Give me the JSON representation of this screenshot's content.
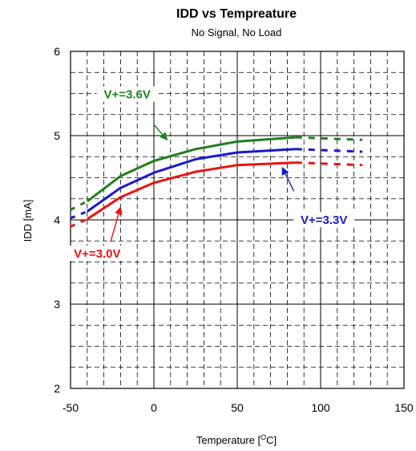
{
  "chart_data": {
    "type": "line",
    "title": "IDD vs Tempreature",
    "subtitle": "No Signal, No Load",
    "xlabel": "Temperature [",
    "xlabel_sup": "O",
    "xlabel_unit": "C]",
    "ylabel": "IDD [mA]",
    "xlim": [
      -50,
      150
    ],
    "ylim": [
      2,
      6
    ],
    "x_ticks": [
      "-50",
      "0",
      "50",
      "100",
      "150"
    ],
    "y_ticks": [
      "2",
      "3",
      "4",
      "5",
      "6"
    ],
    "grid": "major solid, minor dashed",
    "series": [
      {
        "name": "V+=3.6V",
        "color": "#1f7f1f",
        "solid": [
          [
            -40,
            4.22
          ],
          [
            -20,
            4.52
          ],
          [
            0,
            4.7
          ],
          [
            25,
            4.84
          ],
          [
            50,
            4.93
          ],
          [
            85,
            4.98
          ]
        ],
        "dashed_low": [
          [
            -50,
            4.12
          ],
          [
            -40,
            4.22
          ]
        ],
        "dashed_high": [
          [
            85,
            4.98
          ],
          [
            125,
            4.95
          ]
        ]
      },
      {
        "name": "V+=3.3V",
        "color": "#1a1acc",
        "solid": [
          [
            -40,
            4.1
          ],
          [
            -20,
            4.38
          ],
          [
            0,
            4.56
          ],
          [
            25,
            4.72
          ],
          [
            50,
            4.8
          ],
          [
            85,
            4.84
          ]
        ],
        "dashed_low": [
          [
            -50,
            4.02
          ],
          [
            -40,
            4.1
          ]
        ],
        "dashed_high": [
          [
            85,
            4.84
          ],
          [
            125,
            4.81
          ]
        ]
      },
      {
        "name": "V+=3.0V",
        "color": "#ee1111",
        "solid": [
          [
            -40,
            4.01
          ],
          [
            -20,
            4.27
          ],
          [
            0,
            4.44
          ],
          [
            25,
            4.57
          ],
          [
            50,
            4.65
          ],
          [
            85,
            4.68
          ]
        ],
        "dashed_low": [
          [
            -50,
            3.92
          ],
          [
            -40,
            4.01
          ]
        ],
        "dashed_high": [
          [
            85,
            4.68
          ],
          [
            125,
            4.65
          ]
        ]
      }
    ],
    "annotations": [
      {
        "text": "V+=3.6V",
        "color": "#1f7f1f",
        "label_at": [
          -16,
          5.46
        ],
        "arrow_from": [
          0,
          5.13
        ],
        "arrow_to": [
          8,
          4.95
        ]
      },
      {
        "text": "V+=3.3V",
        "color": "#1a1acc",
        "label_at": [
          102,
          3.97
        ],
        "arrow_from": [
          84,
          4.34
        ],
        "arrow_to": [
          77,
          4.62
        ]
      },
      {
        "text": "V+=3.0V",
        "color": "#ee1111",
        "label_at": [
          -34,
          3.57
        ],
        "arrow_from": [
          -26,
          3.74
        ],
        "arrow_to": [
          -20,
          4.15
        ]
      }
    ]
  }
}
